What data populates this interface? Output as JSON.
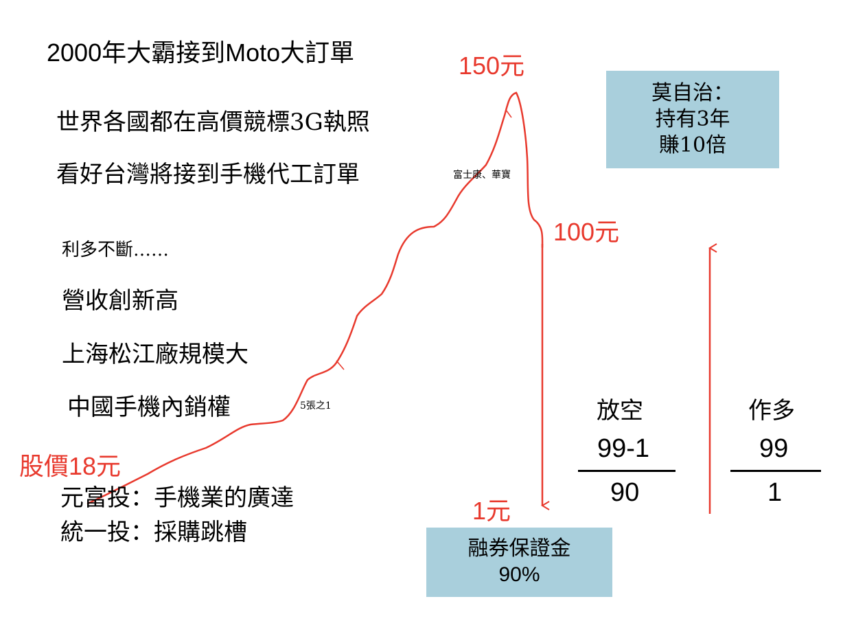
{
  "heading": "2000年大霸接到Moto大訂單",
  "lines": {
    "l1": "世界各國都在高價競標3G執照",
    "l2": "看好台灣將接到手機代工訂單",
    "l2_note": "富士康、華寶",
    "l3": "利多不斷……",
    "l4": "營收創新高",
    "l5": "上海松江廠規模大",
    "l6": "中國手機內銷權",
    "l6_note": "5張之1",
    "l7": "元富投：手機業的廣達",
    "l8": "統一投：採購跳槽"
  },
  "prices": {
    "start": "股價18元",
    "peak": "150元",
    "drop": "100元",
    "bottom": "1元"
  },
  "box_top": {
    "line1": "莫自治：",
    "line2": "持有3年",
    "line3": "賺10倍"
  },
  "box_bottom": {
    "line1": "融券保證金",
    "line2": "90%"
  },
  "short": {
    "label": "放空",
    "numerator": "99-1",
    "denominator": "90"
  },
  "long": {
    "label": "作多",
    "numerator": "99",
    "denominator": "1"
  },
  "colors": {
    "red": "#e8392d",
    "box": "#a9cfdc"
  }
}
